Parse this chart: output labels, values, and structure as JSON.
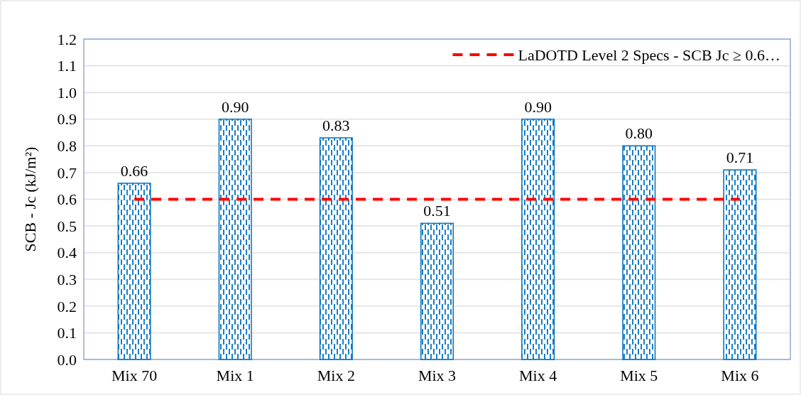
{
  "chart_data": {
    "type": "bar",
    "ylabel": "SCB - Jc (kJ/m²)",
    "categories": [
      "Mix 70",
      "Mix 1",
      "Mix 2",
      "Mix 3",
      "Mix 4",
      "Mix 5",
      "Mix 6"
    ],
    "series": [
      {
        "color": "#0070c0",
        "values": [
          0.66,
          0.9,
          0.83,
          0.51,
          0.9,
          0.8,
          0.71
        ],
        "value_labels": [
          "0.66",
          "0.90",
          "0.83",
          "0.51",
          "0.90",
          "0.80",
          "0.71"
        ]
      },
      {
        "type": "line",
        "name": "LaDOTD Level 2 Specs - SCB Jc ≥ 0.6…",
        "color": "#ff0000",
        "line_style": "dashed",
        "values": [
          0.6,
          0.6,
          0.6,
          0.6,
          0.6,
          0.6,
          0.6
        ]
      }
    ],
    "ylim": [
      0,
      1.2
    ],
    "yticks": [
      {
        "value": 0,
        "label": "0.0"
      },
      {
        "value": 0.1,
        "label": "0.1"
      },
      {
        "value": 0.2,
        "label": "0.2"
      },
      {
        "value": 0.3,
        "label": "0.3"
      },
      {
        "value": 0.4,
        "label": "0.4"
      },
      {
        "value": 0.5,
        "label": "0.5"
      },
      {
        "value": 0.6,
        "label": "0.6"
      },
      {
        "value": 0.7,
        "label": "0.7"
      },
      {
        "value": 0.8,
        "label": "0.8"
      },
      {
        "value": 0.9,
        "label": "0.9"
      },
      {
        "value": 1.0,
        "label": "1.0"
      },
      {
        "value": 1.1,
        "label": "1.1"
      },
      {
        "value": 1.2,
        "label": "1.2"
      }
    ],
    "grid": "y",
    "legend": "top right"
  }
}
